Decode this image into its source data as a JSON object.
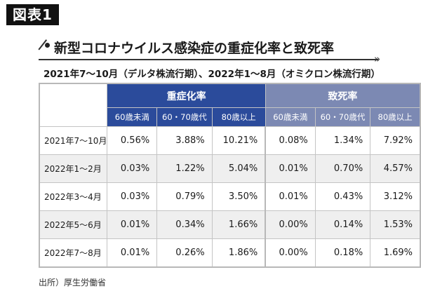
{
  "figure_label": "図表1",
  "title": "新型コロナウイルス感染症の重症化率と致死率",
  "subtitle": "2021年7〜10月（デルタ株流行期）、2022年1〜8月（オミクロン株流行期）",
  "table": {
    "groups": [
      {
        "label": "重症化率",
        "color": "#2b4b9b"
      },
      {
        "label": "致死率",
        "color": "#7c89b3"
      }
    ],
    "subheaders": [
      "60歳未満",
      "60・70歳代",
      "80歳以上",
      "60歳未満",
      "60・70歳代",
      "80歳以上"
    ],
    "rows": [
      {
        "period": "2021年7〜10月",
        "values": [
          "0.56%",
          "3.88%",
          "10.21%",
          "0.08%",
          "1.34%",
          "7.92%"
        ]
      },
      {
        "period": "2022年1〜2月",
        "values": [
          "0.03%",
          "1.22%",
          "5.04%",
          "0.01%",
          "0.70%",
          "4.57%"
        ]
      },
      {
        "period": "2022年3〜4月",
        "values": [
          "0.03%",
          "0.79%",
          "3.50%",
          "0.01%",
          "0.43%",
          "3.12%"
        ]
      },
      {
        "period": "2022年5〜6月",
        "values": [
          "0.01%",
          "0.34%",
          "1.66%",
          "0.00%",
          "0.14%",
          "1.53%"
        ]
      },
      {
        "period": "2022年7〜8月",
        "values": [
          "0.01%",
          "0.26%",
          "1.86%",
          "0.00%",
          "0.18%",
          "1.69%"
        ]
      }
    ]
  },
  "source": "出所）厚生労働省",
  "icons": {
    "arrow": "»"
  }
}
